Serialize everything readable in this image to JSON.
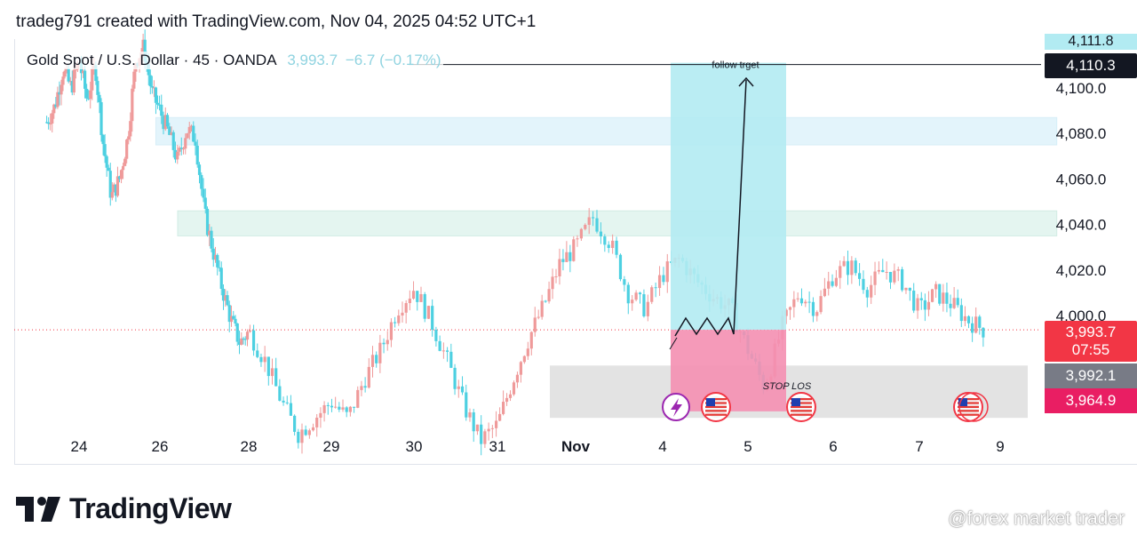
{
  "header": {
    "credit": "tradeg791 created with TradingView.com, Nov 04, 2025 04:52 UTC+1"
  },
  "symbol": {
    "name": "Gold Spot / U.S. Dollar · 45 · OANDA",
    "price": "3,993.7",
    "change": "−6.7 (−0.17%)"
  },
  "price_tags": {
    "top_partial": "4,111.8",
    "target": "4,110.3",
    "current": "3,993.7",
    "countdown": "07:55",
    "gray": "3,992.1",
    "pink": "3,964.9"
  },
  "annotations": {
    "target_text": "follow trget",
    "stop_text": "STOP LOS"
  },
  "icons": [
    "lightning-icon",
    "us-flag-icon",
    "us-flag-icon",
    "us-flag-icon"
  ],
  "brand": {
    "logo_text": "TradingView",
    "watermark": "@forex market trader"
  },
  "colors": {
    "up": "#ef9a9a",
    "down": "#4dd0e1",
    "target_zone": "#b2ebf2",
    "stop_zone": "#f48fb1",
    "support_zone": "#e0e0e0"
  },
  "chart_data": {
    "type": "candlestick",
    "title": "Gold Spot / U.S. Dollar · 45 · OANDA",
    "y_ticks": [
      "4,100.0",
      "4,080.0",
      "4,060.0",
      "4,040.0",
      "4,020.0",
      "4,000.0"
    ],
    "y_tick_values": [
      4100,
      4080,
      4060,
      4040,
      4020,
      4000
    ],
    "ylim": [
      3950,
      4115
    ],
    "x_ticks": [
      "24",
      "26",
      "28",
      "29",
      "30",
      "31",
      "Nov",
      "4",
      "5",
      "6",
      "7",
      "9"
    ],
    "x_tick_positions": [
      0,
      2,
      4,
      5,
      6,
      7,
      8,
      9,
      10,
      11,
      12,
      13
    ],
    "xlim": [
      -0.8,
      13.8
    ],
    "price_path": [
      [
        -0.8,
        4085
      ],
      [
        -0.6,
        4092
      ],
      [
        -0.4,
        4108
      ],
      [
        -0.2,
        4100
      ],
      [
        0.0,
        4112
      ],
      [
        0.2,
        4095
      ],
      [
        0.4,
        4110
      ],
      [
        0.6,
        4075
      ],
      [
        0.8,
        4052
      ],
      [
        1.0,
        4060
      ],
      [
        1.2,
        4078
      ],
      [
        1.4,
        4112
      ],
      [
        1.6,
        4118
      ],
      [
        1.8,
        4098
      ],
      [
        2.0,
        4090
      ],
      [
        2.2,
        4080
      ],
      [
        2.4,
        4068
      ],
      [
        2.6,
        4082
      ],
      [
        2.8,
        4078
      ],
      [
        3.0,
        4045
      ],
      [
        3.2,
        4028
      ],
      [
        3.4,
        4012
      ],
      [
        3.6,
        3998
      ],
      [
        3.8,
        3988
      ],
      [
        4.0,
        3993
      ],
      [
        4.2,
        3980
      ],
      [
        4.4,
        3962
      ],
      [
        4.6,
        3948
      ],
      [
        4.8,
        3955
      ],
      [
        5.0,
        3962
      ],
      [
        5.2,
        3955
      ],
      [
        5.4,
        3972
      ],
      [
        5.6,
        3985
      ],
      [
        5.8,
        4003
      ],
      [
        6.0,
        4012
      ],
      [
        6.2,
        3998
      ],
      [
        6.4,
        3980
      ],
      [
        6.6,
        3960
      ],
      [
        6.8,
        3945
      ],
      [
        7.0,
        3952
      ],
      [
        7.2,
        3972
      ],
      [
        7.4,
        3990
      ],
      [
        7.6,
        4005
      ],
      [
        7.8,
        4023
      ],
      [
        8.0,
        4030
      ],
      [
        8.2,
        4043
      ],
      [
        8.4,
        4032
      ],
      [
        8.6,
        4010
      ],
      [
        8.8,
        4003
      ],
      [
        9.0,
        4018
      ],
      [
        9.2,
        4025
      ],
      [
        9.4,
        4015
      ],
      [
        9.6,
        4008
      ],
      [
        9.8,
        4003
      ],
      [
        10.0,
        3985
      ],
      [
        10.2,
        3968
      ],
      [
        10.4,
        3995
      ],
      [
        10.6,
        4010
      ],
      [
        10.8,
        4003
      ],
      [
        11.0,
        4018
      ],
      [
        11.2,
        4022
      ],
      [
        11.4,
        4012
      ],
      [
        11.6,
        4020
      ],
      [
        11.8,
        4015
      ],
      [
        12.0,
        4002
      ],
      [
        12.2,
        4010
      ],
      [
        12.4,
        4005
      ],
      [
        12.6,
        3998
      ],
      [
        12.8,
        3993.7
      ]
    ],
    "zones": [
      {
        "name": "supply-zone-upper",
        "x0": 1.9,
        "x1": 13.7,
        "y0": 4075,
        "y1": 4087
      },
      {
        "name": "supply-zone-lower",
        "x0": 2.4,
        "x1": 13.7,
        "y0": 4035,
        "y1": 4046
      }
    ],
    "long_position": {
      "x0": 13.75,
      "x1": 15.1,
      "entry": 3993.7,
      "target": 4110.3,
      "stop": 3964.9
    },
    "support_zone": {
      "x0": 11.6,
      "x1": 16.6,
      "y0": 3955,
      "y1": 3978
    },
    "current_price": 3993.7
  }
}
